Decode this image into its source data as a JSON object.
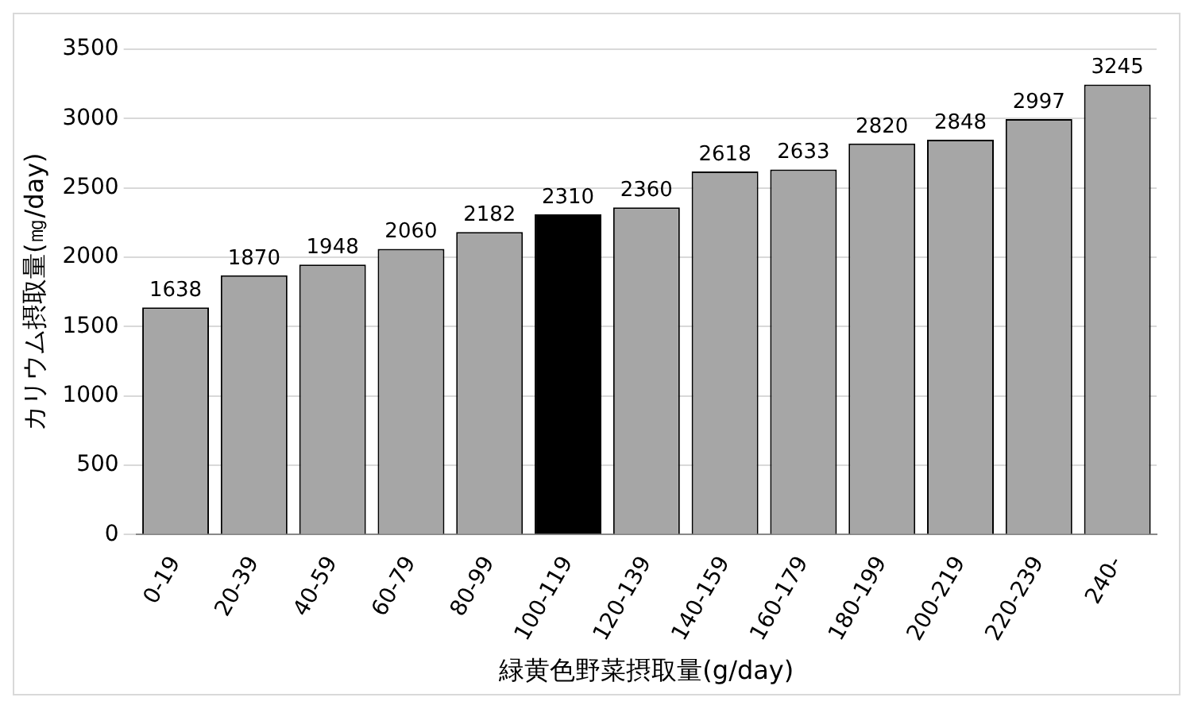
{
  "chart_data": {
    "type": "bar",
    "xlabel": "緑黄色野菜摂取量(g/day)",
    "ylabel": "カリウム摂取量(㎎/day)",
    "categories": [
      "0-19",
      "20-39",
      "40-59",
      "60-79",
      "80-99",
      "100-119",
      "120-139",
      "140-159",
      "160-179",
      "180-199",
      "200-219",
      "220-239",
      "240-"
    ],
    "values": [
      1638,
      1870,
      1948,
      2060,
      2182,
      2310,
      2360,
      2618,
      2633,
      2820,
      2848,
      2997,
      3245
    ],
    "colors": [
      "#a6a6a6",
      "#a6a6a6",
      "#a6a6a6",
      "#a6a6a6",
      "#a6a6a6",
      "#000000",
      "#a6a6a6",
      "#a6a6a6",
      "#a6a6a6",
      "#a6a6a6",
      "#a6a6a6",
      "#a6a6a6",
      "#a6a6a6"
    ],
    "ylim": [
      0,
      3500
    ],
    "yticks": [
      0,
      500,
      1000,
      1500,
      2000,
      2500,
      3000,
      3500
    ],
    "grid": "y",
    "legend": false,
    "data_labels": true
  }
}
